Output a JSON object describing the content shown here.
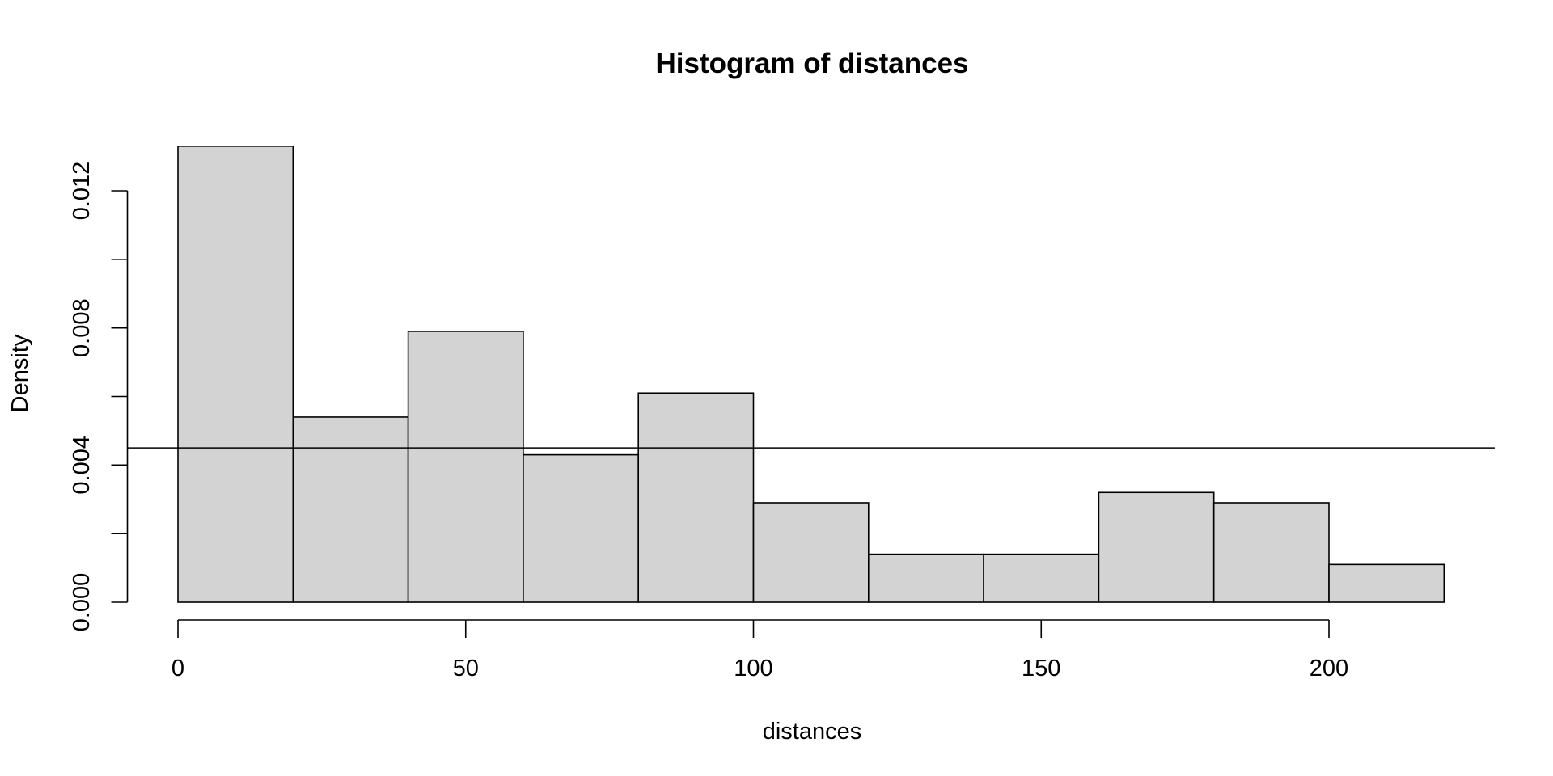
{
  "chart_data": {
    "type": "bar",
    "title": "Histogram of distances",
    "xlabel": "distances",
    "ylabel": "Density",
    "bins": [
      {
        "from": 0,
        "to": 20,
        "density": 0.0133
      },
      {
        "from": 20,
        "to": 40,
        "density": 0.0054
      },
      {
        "from": 40,
        "to": 60,
        "density": 0.0079
      },
      {
        "from": 60,
        "to": 80,
        "density": 0.0043
      },
      {
        "from": 80,
        "to": 100,
        "density": 0.0061
      },
      {
        "from": 100,
        "to": 120,
        "density": 0.0029
      },
      {
        "from": 120,
        "to": 140,
        "density": 0.0014
      },
      {
        "from": 140,
        "to": 160,
        "density": 0.0014
      },
      {
        "from": 160,
        "to": 180,
        "density": 0.0032
      },
      {
        "from": 180,
        "to": 200,
        "density": 0.0029
      },
      {
        "from": 200,
        "to": 220,
        "density": 0.0011
      }
    ],
    "reference_line": {
      "orientation": "horizontal",
      "y": 0.0045
    },
    "xlim": [
      -8.8,
      228.8
    ],
    "ylim": [
      0,
      0.0138
    ],
    "x_ticks": [
      0,
      50,
      100,
      150,
      200
    ],
    "x_tick_labels": [
      "0",
      "50",
      "100",
      "150",
      "200"
    ],
    "y_ticks": [
      0,
      0.002,
      0.004,
      0.006,
      0.008,
      0.01,
      0.012
    ],
    "y_tick_labels": [
      "0.000",
      "0.004",
      "0.008",
      "0.012"
    ],
    "y_labeled_ticks": [
      0,
      0.004,
      0.008,
      0.012
    ],
    "grid": false,
    "bar_fill": "#d3d3d3",
    "bar_stroke": "#000000"
  }
}
